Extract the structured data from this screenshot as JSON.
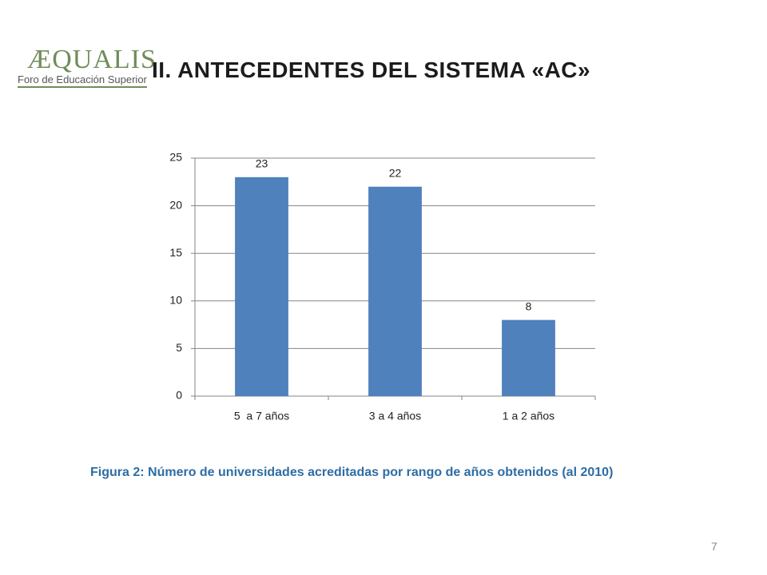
{
  "logo": {
    "name": "ÆQUALIS",
    "tagline": "Foro de Educación Superior"
  },
  "title": "II. ANTECEDENTES DEL SISTEMA «AC»",
  "chart_data": {
    "type": "bar",
    "categories": [
      "5  a 7 años",
      "3 a 4 años",
      "1 a 2 años"
    ],
    "values": [
      23,
      22,
      8
    ],
    "color": "#4f81bd",
    "ylim": [
      0,
      25
    ],
    "yticks": [
      0,
      5,
      10,
      15,
      20,
      25
    ],
    "grid": true,
    "data_labels": true
  },
  "caption": "Figura 2: Número de universidades acreditadas por rango de años obtenidos (al 2010)",
  "page_number": "7"
}
